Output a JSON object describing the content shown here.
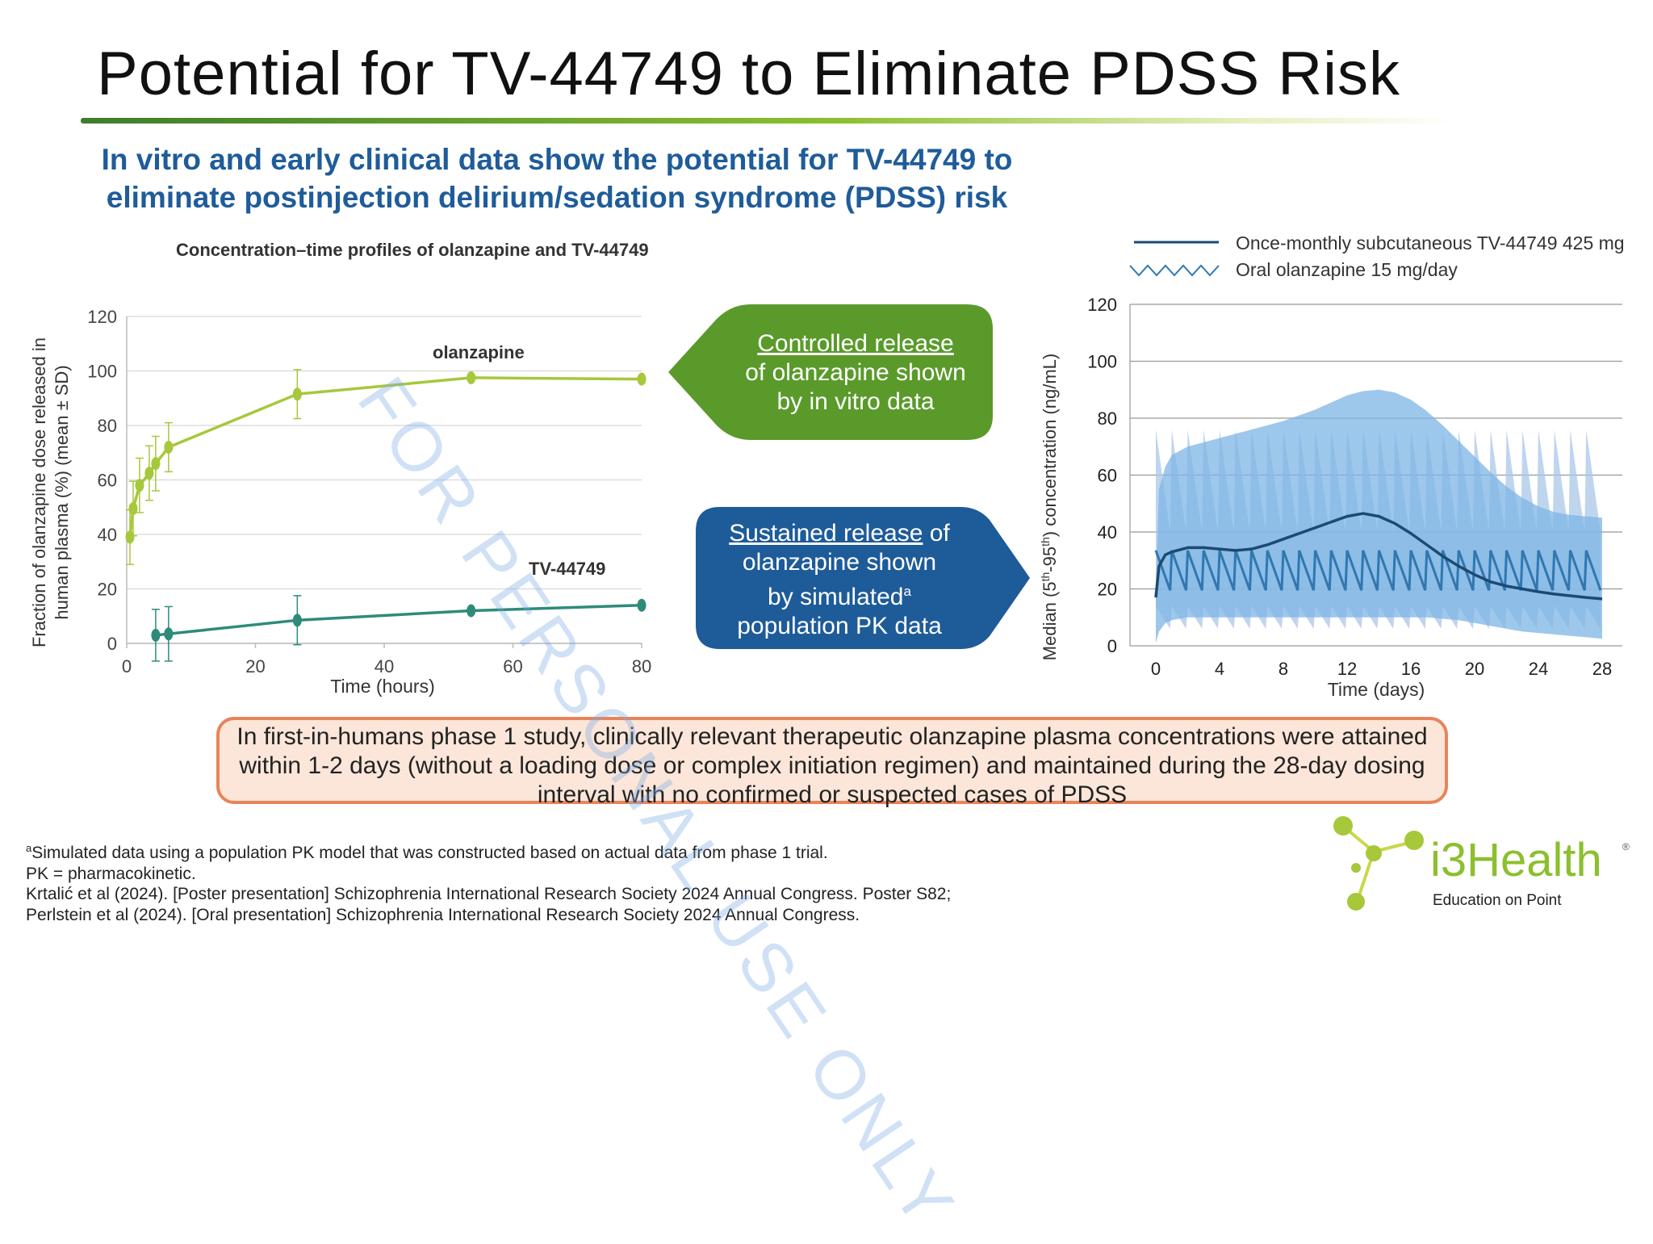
{
  "slide": {
    "title": "Potential for TV-44749 to Eliminate PDSS Risk",
    "subtitle_line1": "In vitro and early clinical data show the potential for TV-44749 to",
    "subtitle_line2": "eliminate postinjection delirium/sedation syndrome (PDSS) risk",
    "callout_green": {
      "underlined": "Controlled release",
      "line2": "of olanzapine shown",
      "line3": "by in vitro data"
    },
    "callout_blue": {
      "underlined": "Sustained release",
      "line1_rest": " of",
      "line2": "olanzapine shown",
      "line3": "by simulated",
      "line3_sup": "a",
      "line4": "population PK data"
    },
    "summary": "In first-in-humans phase 1 study, clinically relevant therapeutic olanzapine plasma concentrations were attained within 1-2 days (without a loading dose or complex initiation regimen) and maintained during the 28-day dosing interval with no confirmed or suspected cases of PDSS",
    "footnote_sup": "a",
    "footnote_1": "Simulated data using a population PK model that was constructed based on actual data from phase 1 trial.",
    "footnote_2": "PK = pharmacokinetic.",
    "footnote_3": "Krtalić et al (2024). [Poster presentation] Schizophrenia International Research Society 2024 Annual Congress. Poster S82;",
    "footnote_4": "Perlstein et al (2024). [Oral presentation] Schizophrenia International Research Society 2024 Annual Congress.",
    "watermark": "FOR PERSONAL USE ONLY",
    "logo": {
      "name": "i3Health",
      "tagline": "Education on Point",
      "mark": "®"
    },
    "colors": {
      "title_green": "#6aa72e",
      "subtitle_blue": "#1f5c99",
      "green_callout": "#5a9a2b",
      "blue_callout": "#1e5b99",
      "summary_border": "#e8845a",
      "summary_fill": "#fbe6d9"
    }
  },
  "chart_data": [
    {
      "type": "line",
      "title": "Concentration–time profiles of olanzapine and TV-44749",
      "xlabel": "Time (hours)",
      "ylabel_line1": "Fraction of olanzapine dose released in",
      "ylabel_line2": "human plasma (%) (mean ± SD)",
      "xlim": [
        0,
        80
      ],
      "ylim": [
        0,
        120
      ],
      "xticks": [
        0,
        20,
        40,
        60,
        80
      ],
      "yticks": [
        0,
        20,
        40,
        60,
        80,
        100,
        120
      ],
      "grid": "horizontal",
      "series": [
        {
          "name": "olanzapine",
          "color": "#a6c83a",
          "x": [
            0.5,
            1,
            2,
            3.5,
            4.5,
            6.5,
            26.5,
            53.5,
            80
          ],
          "y": [
            39,
            49.5,
            58,
            62.5,
            66,
            72,
            91.5,
            97.5,
            97
          ],
          "err": [
            10,
            10,
            10,
            10,
            10,
            9,
            9,
            0,
            0
          ]
        },
        {
          "name": "TV-44749",
          "color": "#2e8b7a",
          "x": [
            4.5,
            6.5,
            26.5,
            53.5,
            80
          ],
          "y": [
            3,
            3.5,
            8.5,
            12,
            14
          ],
          "err": [
            9.5,
            10,
            9,
            0,
            0
          ]
        }
      ]
    },
    {
      "type": "area",
      "xlabel": "Time (days)",
      "ylabel": "Median (5th-95th) concentration (ng/mL)",
      "ylabel_parts": {
        "a": "Median (5",
        "sup1": "th",
        "b": "-95",
        "sup2": "th",
        "c": ") concentration (ng/mL)"
      },
      "xlim": [
        0,
        28
      ],
      "ylim": [
        0,
        120
      ],
      "xticks": [
        0,
        4,
        8,
        12,
        16,
        20,
        24,
        28
      ],
      "yticks": [
        0,
        20,
        40,
        60,
        80,
        100,
        120
      ],
      "grid": "horizontal",
      "legend": "top",
      "series": [
        {
          "name": "Once-monthly subcutaneous TV-44749 425 mg",
          "color": "#1b4a72",
          "band_color": "#7db4e6",
          "x": [
            0,
            0.2,
            0.6,
            1,
            2,
            3,
            4,
            5,
            6,
            7,
            8,
            9,
            10,
            11,
            12,
            13,
            14,
            15,
            16,
            17,
            18,
            19,
            20,
            21,
            22,
            23,
            24,
            25,
            26,
            27,
            28
          ],
          "median": [
            17,
            28,
            32,
            33,
            34.5,
            34.5,
            34,
            33.5,
            34,
            35.5,
            37.5,
            39.5,
            41.5,
            43.5,
            45.5,
            46.5,
            45.5,
            43,
            39.5,
            35.5,
            31.5,
            28,
            25,
            22.5,
            21,
            20,
            19,
            18.2,
            17.6,
            17,
            16.5
          ],
          "p95": [
            20,
            55,
            63,
            67,
            70,
            71.5,
            73,
            74.5,
            76,
            77.5,
            79,
            81,
            83,
            85.5,
            88,
            89.5,
            90,
            89,
            86.5,
            82.5,
            77.5,
            72,
            66.5,
            61,
            56,
            52,
            49,
            47,
            46,
            45.5,
            45
          ],
          "p5": [
            1,
            5,
            8,
            9,
            10,
            10,
            10,
            10,
            10,
            10,
            10,
            10,
            10,
            10,
            10,
            10,
            10,
            10,
            10,
            10,
            9.5,
            9,
            8,
            7,
            6,
            5,
            4.5,
            4,
            3.5,
            3,
            2.5
          ]
        },
        {
          "name": "Oral olanzapine 15 mg/day",
          "color": "#2f78b0",
          "band_color": "#a9c7e8",
          "daily_dosing": true,
          "median_trough": 19.5,
          "median_peak": 33.5,
          "p5_trough": 6,
          "p5_peak": 14,
          "p95_trough": 40,
          "p95_peak": 76
        }
      ]
    }
  ]
}
